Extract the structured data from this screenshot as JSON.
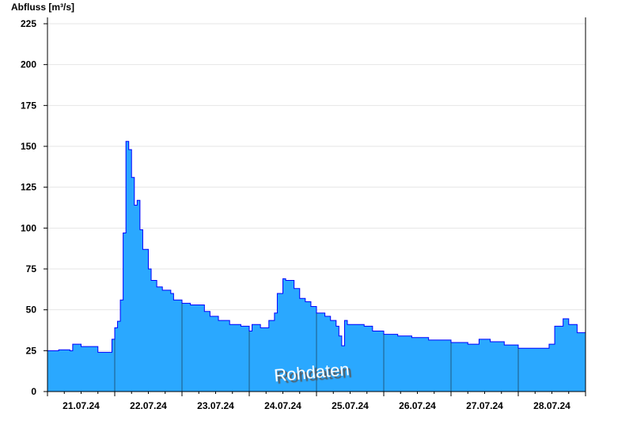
{
  "chart_data": {
    "type": "area",
    "title": "",
    "ylabel": "Abfluss [m³/s]",
    "xlabel": "",
    "ylim": [
      0,
      225
    ],
    "yticks": [
      0,
      25,
      50,
      75,
      100,
      125,
      150,
      175,
      200,
      225
    ],
    "xlim": [
      "21.07.24 00:00",
      "29.07.24 00:00"
    ],
    "xtick_labels": [
      "21.07.24",
      "22.07.24",
      "23.07.24",
      "24.07.24",
      "25.07.24",
      "26.07.24",
      "27.07.24",
      "28.07.24"
    ],
    "grid": true,
    "annotation": "Rohdaten",
    "colors": {
      "fill": "#2aa8ff",
      "line": "#0000ff",
      "day_lines": "#1f5a80",
      "grid": "#e6e6e6"
    },
    "series": [
      {
        "points": [
          [
            "21.07.24 00:00",
            25
          ],
          [
            "21.07.24 04:00",
            25.5
          ],
          [
            "21.07.24 08:00",
            25
          ],
          [
            "21.07.24 09:00",
            29
          ],
          [
            "21.07.24 12:00",
            27.5
          ],
          [
            "21.07.24 17:00",
            27.5
          ],
          [
            "21.07.24 18:00",
            24
          ],
          [
            "21.07.24 22:00",
            24
          ],
          [
            "21.07.24 23:00",
            32
          ],
          [
            "22.07.24 00:00",
            39
          ],
          [
            "22.07.24 01:00",
            43
          ],
          [
            "22.07.24 02:00",
            56
          ],
          [
            "22.07.24 03:00",
            97
          ],
          [
            "22.07.24 04:00",
            153
          ],
          [
            "22.07.24 05:00",
            148
          ],
          [
            "22.07.24 06:00",
            131
          ],
          [
            "22.07.24 07:00",
            114
          ],
          [
            "22.07.24 08:00",
            117
          ],
          [
            "22.07.24 09:00",
            99
          ],
          [
            "22.07.24 10:00",
            87
          ],
          [
            "22.07.24 12:00",
            75
          ],
          [
            "22.07.24 13:00",
            68
          ],
          [
            "22.07.24 15:00",
            64
          ],
          [
            "22.07.24 17:00",
            62
          ],
          [
            "22.07.24 20:00",
            60
          ],
          [
            "22.07.24 21:00",
            56
          ],
          [
            "23.07.24 00:00",
            54
          ],
          [
            "23.07.24 03:00",
            53
          ],
          [
            "23.07.24 08:00",
            49
          ],
          [
            "23.07.24 10:00",
            46
          ],
          [
            "23.07.24 13:00",
            43.5
          ],
          [
            "23.07.24 17:00",
            41
          ],
          [
            "23.07.24 21:00",
            40
          ],
          [
            "24.07.24 00:00",
            37
          ],
          [
            "24.07.24 01:00",
            41
          ],
          [
            "24.07.24 04:00",
            39
          ],
          [
            "24.07.24 07:00",
            43.5
          ],
          [
            "24.07.24 09:00",
            48
          ],
          [
            "24.07.24 10:00",
            60
          ],
          [
            "24.07.24 12:00",
            69
          ],
          [
            "24.07.24 13:00",
            68
          ],
          [
            "24.07.24 14:00",
            68
          ],
          [
            "24.07.24 16:00",
            63
          ],
          [
            "24.07.24 18:00",
            57
          ],
          [
            "24.07.24 20:00",
            55
          ],
          [
            "24.07.24 22:00",
            52
          ],
          [
            "25.07.24 00:00",
            48
          ],
          [
            "25.07.24 03:00",
            46
          ],
          [
            "25.07.24 05:00",
            43.5
          ],
          [
            "25.07.24 07:00",
            40
          ],
          [
            "25.07.24 08:00",
            34
          ],
          [
            "25.07.24 09:00",
            28
          ],
          [
            "25.07.24 10:00",
            43.5
          ],
          [
            "25.07.24 11:00",
            41
          ],
          [
            "25.07.24 17:00",
            40
          ],
          [
            "25.07.24 20:00",
            37
          ],
          [
            "26.07.24 00:00",
            35
          ],
          [
            "26.07.24 05:00",
            34
          ],
          [
            "26.07.24 10:00",
            33
          ],
          [
            "26.07.24 16:00",
            31.5
          ],
          [
            "27.07.24 00:00",
            30
          ],
          [
            "27.07.24 06:00",
            29
          ],
          [
            "27.07.24 10:00",
            32
          ],
          [
            "27.07.24 14:00",
            30.5
          ],
          [
            "27.07.24 19:00",
            28.5
          ],
          [
            "28.07.24 00:00",
            26.5
          ],
          [
            "28.07.24 07:00",
            26.5
          ],
          [
            "28.07.24 11:00",
            29
          ],
          [
            "28.07.24 13:00",
            40
          ],
          [
            "28.07.24 16:00",
            44.5
          ],
          [
            "28.07.24 18:00",
            41
          ],
          [
            "28.07.24 21:00",
            36
          ],
          [
            "28.07.24 23:59",
            37
          ]
        ]
      }
    ]
  }
}
